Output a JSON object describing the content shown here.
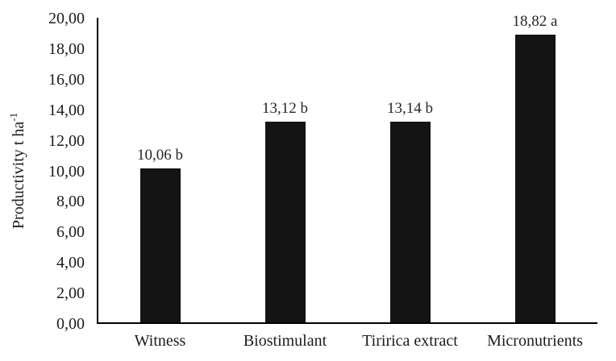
{
  "chart_data": {
    "type": "bar",
    "title": "",
    "ylabel": "Productivity t ha",
    "ylabel_superscript": "-1",
    "xlabel": "",
    "categories": [
      "Witness",
      "Biostimulant",
      "Tiririca extract",
      "Micronutrients"
    ],
    "values": [
      10.06,
      13.12,
      13.14,
      18.82
    ],
    "bar_labels": [
      "10,06 b",
      "13,12 b",
      "13,14 b",
      "18,82 a"
    ],
    "ylim": [
      0,
      20
    ],
    "ytick_step": 2,
    "yticks": [
      {
        "value": 0,
        "label": "0,00"
      },
      {
        "value": 2,
        "label": "2,00"
      },
      {
        "value": 4,
        "label": "4,00"
      },
      {
        "value": 6,
        "label": "6,00"
      },
      {
        "value": 8,
        "label": "8,00"
      },
      {
        "value": 10,
        "label": "10,00"
      },
      {
        "value": 12,
        "label": "12,00"
      },
      {
        "value": 14,
        "label": "14,00"
      },
      {
        "value": 16,
        "label": "16,00"
      },
      {
        "value": 18,
        "label": "18,00"
      },
      {
        "value": 20,
        "label": "20,00"
      }
    ],
    "grid": false,
    "legend": null,
    "decimal_separator": ",",
    "colors": {
      "bar": "#141414",
      "axis": "#000000",
      "text": "#1c1c1c",
      "background": "#ffffff"
    }
  }
}
